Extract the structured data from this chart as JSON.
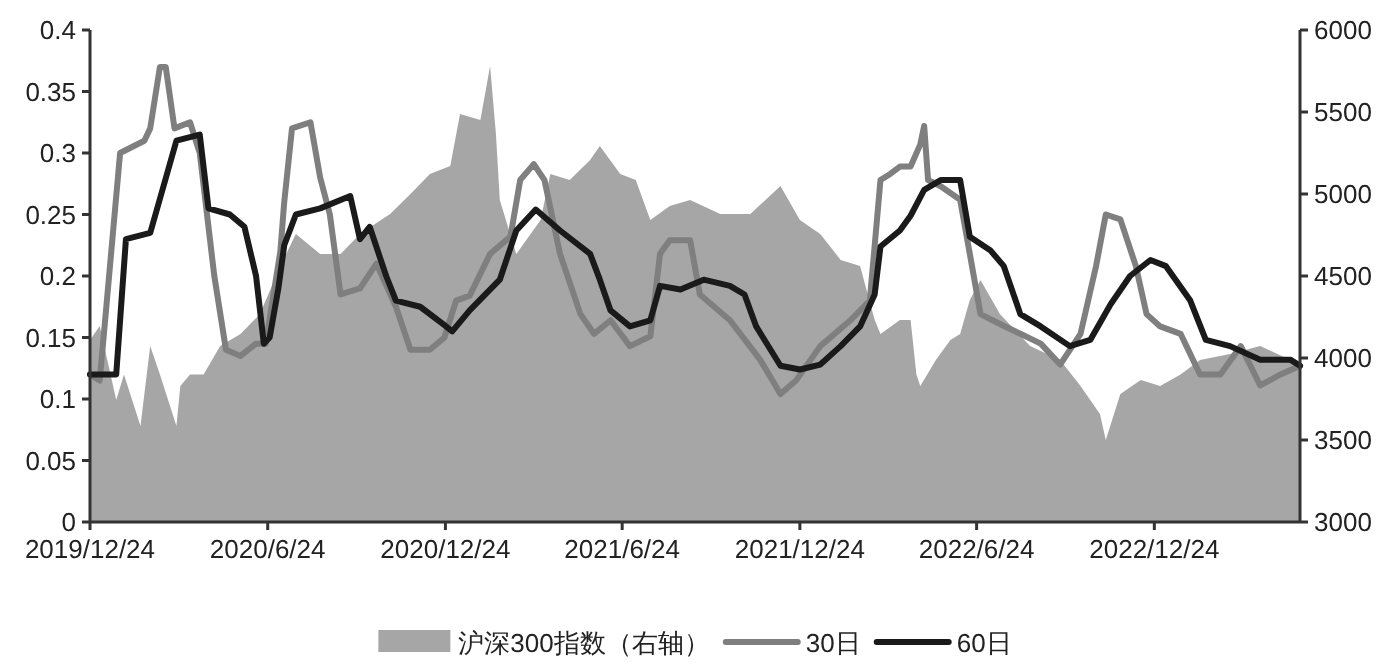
{
  "chart_data": {
    "type": "line",
    "legend": "bottom",
    "xlim": [
      "2019-12-24",
      "2023-05-23"
    ],
    "xticks": [
      {
        "value": "2019-12-24",
        "label": "2019/12/24"
      },
      {
        "value": "2020-06-24",
        "label": "2020/6/24"
      },
      {
        "value": "2020-12-24",
        "label": "2020/12/24"
      },
      {
        "value": "2021-06-24",
        "label": "2021/6/24"
      },
      {
        "value": "2021-12-24",
        "label": "2021/12/24"
      },
      {
        "value": "2022-06-24",
        "label": "2022/6/24"
      },
      {
        "value": "2022-12-24",
        "label": "2022/12/24"
      }
    ],
    "ylim": [
      0,
      0.4
    ],
    "yticks": [
      0,
      0.05,
      0.1,
      0.15,
      0.2,
      0.25,
      0.3,
      0.35,
      0.4
    ],
    "y2lim": [
      3000,
      6000
    ],
    "y2ticks": [
      3000,
      3500,
      4000,
      4500,
      5000,
      5500,
      6000
    ],
    "series": [
      {
        "name": "沪深300指数（右轴）",
        "type": "area",
        "axis": "y2",
        "color": "#a6a6a6",
        "x": [
          "2019-12-24",
          "2020-01-03",
          "2020-01-20",
          "2020-01-28",
          "2020-02-14",
          "2020-02-24",
          "2020-03-05",
          "2020-03-22",
          "2020-03-26",
          "2020-04-05",
          "2020-04-19",
          "2020-05-06",
          "2020-05-27",
          "2020-06-16",
          "2020-07-07",
          "2020-07-23",
          "2020-08-17",
          "2020-09-07",
          "2020-09-27",
          "2020-10-28",
          "2020-11-18",
          "2020-12-08",
          "2020-12-29",
          "2021-01-08",
          "2021-01-29",
          "2021-02-08",
          "2021-02-14",
          "2021-02-18",
          "2021-03-07",
          "2021-04-01",
          "2021-04-11",
          "2021-05-01",
          "2021-05-22",
          "2021-06-01",
          "2021-06-22",
          "2021-07-08",
          "2021-07-23",
          "2021-08-12",
          "2021-09-02",
          "2021-10-03",
          "2021-11-03",
          "2021-12-04",
          "2021-12-24",
          "2022-01-14",
          "2022-02-04",
          "2022-02-24",
          "2022-03-11",
          "2022-03-17",
          "2022-04-06",
          "2022-04-17",
          "2022-04-23",
          "2022-04-27",
          "2022-05-13",
          "2022-05-28",
          "2022-06-07",
          "2022-06-17",
          "2022-06-28",
          "2022-07-18",
          "2022-08-18",
          "2022-09-18",
          "2022-10-09",
          "2022-10-29",
          "2022-11-04",
          "2022-11-19",
          "2022-12-10",
          "2022-12-30",
          "2023-01-20",
          "2023-02-09",
          "2023-03-12",
          "2023-04-12",
          "2023-05-13",
          "2023-05-23"
        ],
        "values": [
          4110,
          4195,
          3744,
          3900,
          3585,
          4073,
          3900,
          3585,
          3830,
          3900,
          3900,
          4073,
          4146,
          4268,
          4561,
          4756,
          4634,
          4634,
          4756,
          4878,
          5000,
          5122,
          5171,
          5488,
          5451,
          5780,
          5366,
          4963,
          4634,
          4841,
          5122,
          5085,
          5207,
          5293,
          5122,
          5085,
          4841,
          4927,
          4963,
          4878,
          4878,
          5049,
          4841,
          4756,
          4598,
          4561,
          4232,
          4146,
          4232,
          4232,
          3900,
          3830,
          3988,
          4110,
          4146,
          4354,
          4475,
          4268,
          4073,
          3988,
          3830,
          3659,
          3500,
          3780,
          3866,
          3830,
          3900,
          3988,
          4024,
          4073,
          3988,
          3950
        ]
      },
      {
        "name": "30日",
        "color": "#7f7f7f",
        "x": [
          "2019-12-24",
          "2020-01-03",
          "2020-01-24",
          "2020-02-18",
          "2020-02-24",
          "2020-03-05",
          "2020-03-11",
          "2020-03-20",
          "2020-04-05",
          "2020-04-15",
          "2020-04-30",
          "2020-05-12",
          "2020-05-27",
          "2020-06-12",
          "2020-06-22",
          "2020-07-07",
          "2020-07-11",
          "2020-07-19",
          "2020-08-07",
          "2020-08-17",
          "2020-08-27",
          "2020-09-07",
          "2020-09-27",
          "2020-10-14",
          "2020-11-03",
          "2020-11-18",
          "2020-12-08",
          "2020-12-23",
          "2021-01-04",
          "2021-01-18",
          "2021-02-08",
          "2021-03-01",
          "2021-03-11",
          "2021-03-25",
          "2021-04-05",
          "2021-04-21",
          "2021-05-12",
          "2021-05-26",
          "2021-06-12",
          "2021-07-02",
          "2021-07-23",
          "2021-08-02",
          "2021-08-12",
          "2021-09-02",
          "2021-09-12",
          "2021-10-13",
          "2021-11-13",
          "2021-12-04",
          "2021-12-20",
          "2022-01-14",
          "2022-02-14",
          "2022-03-06",
          "2022-03-17",
          "2022-03-27",
          "2022-04-06",
          "2022-04-17",
          "2022-04-27",
          "2022-05-01",
          "2022-05-05",
          "2022-05-18",
          "2022-06-07",
          "2022-06-17",
          "2022-06-28",
          "2022-07-18",
          "2022-08-08",
          "2022-08-29",
          "2022-09-18",
          "2022-10-09",
          "2022-10-25",
          "2022-11-04",
          "2022-11-19",
          "2022-12-05",
          "2022-12-16",
          "2022-12-30",
          "2023-01-20",
          "2023-02-09",
          "2023-03-02",
          "2023-03-23",
          "2023-04-12",
          "2023-05-03",
          "2023-05-23"
        ],
        "values": [
          0.12,
          0.115,
          0.3,
          0.31,
          0.32,
          0.37,
          0.37,
          0.32,
          0.325,
          0.3,
          0.2,
          0.14,
          0.135,
          0.145,
          0.145,
          0.22,
          0.26,
          0.32,
          0.325,
          0.28,
          0.25,
          0.185,
          0.19,
          0.21,
          0.175,
          0.14,
          0.14,
          0.15,
          0.18,
          0.184,
          0.218,
          0.232,
          0.278,
          0.291,
          0.278,
          0.218,
          0.169,
          0.153,
          0.164,
          0.143,
          0.151,
          0.218,
          0.229,
          0.229,
          0.185,
          0.164,
          0.132,
          0.104,
          0.115,
          0.143,
          0.164,
          0.18,
          0.278,
          0.283,
          0.289,
          0.289,
          0.307,
          0.322,
          0.278,
          0.273,
          0.262,
          0.218,
          0.169,
          0.161,
          0.153,
          0.145,
          0.128,
          0.153,
          0.208,
          0.25,
          0.246,
          0.208,
          0.169,
          0.159,
          0.153,
          0.12,
          0.12,
          0.143,
          0.111,
          0.12,
          0.127
        ]
      },
      {
        "name": "60日",
        "color": "#1a1a1a",
        "x": [
          "2019-12-24",
          "2020-01-20",
          "2020-01-30",
          "2020-02-24",
          "2020-03-22",
          "2020-04-15",
          "2020-04-24",
          "2020-05-16",
          "2020-05-31",
          "2020-06-12",
          "2020-06-20",
          "2020-06-26",
          "2020-07-05",
          "2020-07-11",
          "2020-07-23",
          "2020-08-17",
          "2020-09-17",
          "2020-09-27",
          "2020-10-07",
          "2020-10-24",
          "2020-11-03",
          "2020-11-28",
          "2020-12-23",
          "2020-12-31",
          "2021-01-18",
          "2021-02-18",
          "2021-03-07",
          "2021-03-27",
          "2021-04-21",
          "2021-05-22",
          "2021-06-01",
          "2021-06-12",
          "2021-07-02",
          "2021-07-23",
          "2021-08-02",
          "2021-08-23",
          "2021-09-16",
          "2021-10-13",
          "2021-10-28",
          "2021-11-09",
          "2021-12-04",
          "2021-12-24",
          "2022-01-14",
          "2022-02-04",
          "2022-02-24",
          "2022-03-11",
          "2022-03-17",
          "2022-04-06",
          "2022-04-17",
          "2022-05-01",
          "2022-05-18",
          "2022-06-07",
          "2022-06-17",
          "2022-07-08",
          "2022-07-22",
          "2022-08-08",
          "2022-08-29",
          "2022-09-28",
          "2022-10-19",
          "2022-11-09",
          "2022-11-29",
          "2022-12-20",
          "2023-01-05",
          "2023-01-30",
          "2023-02-15",
          "2023-03-12",
          "2023-04-12",
          "2023-05-13",
          "2023-05-23"
        ],
        "values": [
          0.12,
          0.12,
          0.23,
          0.235,
          0.31,
          0.315,
          0.255,
          0.25,
          0.24,
          0.2,
          0.145,
          0.15,
          0.19,
          0.225,
          0.25,
          0.255,
          0.265,
          0.23,
          0.24,
          0.2,
          0.18,
          0.175,
          0.16,
          0.155,
          0.172,
          0.197,
          0.237,
          0.254,
          0.237,
          0.218,
          0.197,
          0.172,
          0.159,
          0.164,
          0.192,
          0.189,
          0.197,
          0.192,
          0.185,
          0.159,
          0.127,
          0.124,
          0.128,
          0.143,
          0.159,
          0.185,
          0.224,
          0.237,
          0.249,
          0.27,
          0.278,
          0.278,
          0.232,
          0.221,
          0.208,
          0.169,
          0.159,
          0.143,
          0.148,
          0.177,
          0.2,
          0.213,
          0.208,
          0.18,
          0.148,
          0.143,
          0.132,
          0.132,
          0.127
        ]
      }
    ]
  }
}
